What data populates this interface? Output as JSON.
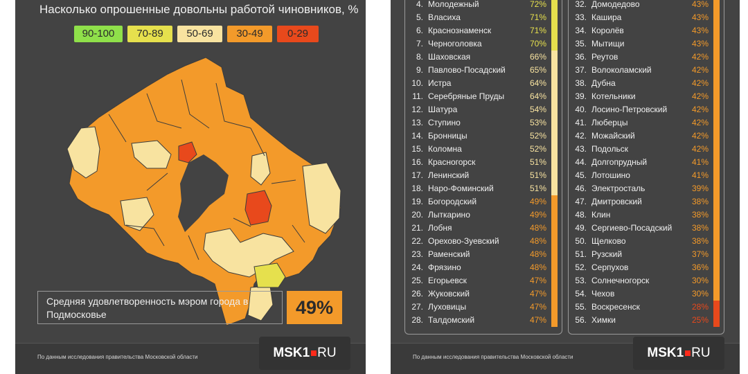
{
  "title": "Насколько опрошенные довольны работой чиновников, %",
  "legend": [
    {
      "label": "90-100",
      "color": "#8fe04a"
    },
    {
      "label": "70-89",
      "color": "#e6e04d"
    },
    {
      "label": "50-69",
      "color": "#f8e3a0"
    },
    {
      "label": "30-49",
      "color": "#f39a2a"
    },
    {
      "label": "0-29",
      "color": "#e8491c"
    }
  ],
  "average": {
    "label": "Средняя удовлетворенность мэром города в Подмосковье",
    "value": "49%"
  },
  "footer": {
    "note": "По данным исследования правительства Московской области",
    "logo_main": "MSK1",
    "logo_ru": "RU"
  },
  "chart_data": {
    "type": "table",
    "title": "Насколько опрошенные довольны работой чиновников, %",
    "columns": [
      {
        "rows": [
          {
            "rank": "4.",
            "name": "Молодежный",
            "pct": "72%",
            "value": 72
          },
          {
            "rank": "5.",
            "name": "Власиха",
            "pct": "71%",
            "value": 71
          },
          {
            "rank": "6.",
            "name": "Краснознаменск",
            "pct": "71%",
            "value": 71
          },
          {
            "rank": "7.",
            "name": "Черноголовка",
            "pct": "70%",
            "value": 70
          },
          {
            "rank": "8.",
            "name": "Шаховская",
            "pct": "66%",
            "value": 66
          },
          {
            "rank": "9.",
            "name": "Павлово-Посадский",
            "pct": "65%",
            "value": 65
          },
          {
            "rank": "10.",
            "name": "Истра",
            "pct": "64%",
            "value": 64
          },
          {
            "rank": "11.",
            "name": "Серебряные Пруды",
            "pct": "64%",
            "value": 64
          },
          {
            "rank": "12.",
            "name": "Шатура",
            "pct": "54%",
            "value": 54
          },
          {
            "rank": "13.",
            "name": "Ступино",
            "pct": "53%",
            "value": 53
          },
          {
            "rank": "14.",
            "name": "Бронницы",
            "pct": "52%",
            "value": 52
          },
          {
            "rank": "15.",
            "name": "Коломна",
            "pct": "52%",
            "value": 52
          },
          {
            "rank": "16.",
            "name": "Красногорск",
            "pct": "51%",
            "value": 51
          },
          {
            "rank": "17.",
            "name": "Ленинский",
            "pct": "51%",
            "value": 51
          },
          {
            "rank": "18.",
            "name": "Наро-Фоминский",
            "pct": "51%",
            "value": 51
          },
          {
            "rank": "19.",
            "name": "Богородский",
            "pct": "49%",
            "value": 49
          },
          {
            "rank": "20.",
            "name": "Лыткарино",
            "pct": "49%",
            "value": 49
          },
          {
            "rank": "21.",
            "name": "Лобня",
            "pct": "48%",
            "value": 48
          },
          {
            "rank": "22.",
            "name": "Орехово-Зуевский",
            "pct": "48%",
            "value": 48
          },
          {
            "rank": "23.",
            "name": "Раменский",
            "pct": "48%",
            "value": 48
          },
          {
            "rank": "24.",
            "name": "Фрязино",
            "pct": "48%",
            "value": 48
          },
          {
            "rank": "25.",
            "name": "Егорьевск",
            "pct": "47%",
            "value": 47
          },
          {
            "rank": "26.",
            "name": "Жуковский",
            "pct": "47%",
            "value": 47
          },
          {
            "rank": "27.",
            "name": "Луховицы",
            "pct": "47%",
            "value": 47
          },
          {
            "rank": "28.",
            "name": "Талдомский",
            "pct": "47%",
            "value": 47
          }
        ]
      },
      {
        "rows": [
          {
            "rank": "32.",
            "name": "Домодедово",
            "pct": "43%",
            "value": 43
          },
          {
            "rank": "33.",
            "name": "Кашира",
            "pct": "43%",
            "value": 43
          },
          {
            "rank": "34.",
            "name": "Королёв",
            "pct": "43%",
            "value": 43
          },
          {
            "rank": "35.",
            "name": "Мытищи",
            "pct": "43%",
            "value": 43
          },
          {
            "rank": "36.",
            "name": "Реутов",
            "pct": "42%",
            "value": 42
          },
          {
            "rank": "37.",
            "name": "Волоколамский",
            "pct": "42%",
            "value": 42
          },
          {
            "rank": "38.",
            "name": "Дубна",
            "pct": "42%",
            "value": 42
          },
          {
            "rank": "39.",
            "name": "Котельники",
            "pct": "42%",
            "value": 42
          },
          {
            "rank": "40.",
            "name": "Лосино-Петровский",
            "pct": "42%",
            "value": 42
          },
          {
            "rank": "41.",
            "name": "Люберцы",
            "pct": "42%",
            "value": 42
          },
          {
            "rank": "42.",
            "name": "Можайский",
            "pct": "42%",
            "value": 42
          },
          {
            "rank": "43.",
            "name": "Подольск",
            "pct": "42%",
            "value": 42
          },
          {
            "rank": "44.",
            "name": "Долгопрудный",
            "pct": "41%",
            "value": 41
          },
          {
            "rank": "45.",
            "name": "Лотошино",
            "pct": "41%",
            "value": 41
          },
          {
            "rank": "46.",
            "name": "Электросталь",
            "pct": "39%",
            "value": 39
          },
          {
            "rank": "47.",
            "name": "Дмитровский",
            "pct": "38%",
            "value": 38
          },
          {
            "rank": "48.",
            "name": "Клин",
            "pct": "38%",
            "value": 38
          },
          {
            "rank": "49.",
            "name": "Сергиево-Посадский",
            "pct": "38%",
            "value": 38
          },
          {
            "rank": "50.",
            "name": "Щелково",
            "pct": "38%",
            "value": 38
          },
          {
            "rank": "51.",
            "name": "Рузский",
            "pct": "37%",
            "value": 37
          },
          {
            "rank": "52.",
            "name": "Серпухов",
            "pct": "36%",
            "value": 36
          },
          {
            "rank": "53.",
            "name": "Солнечногорск",
            "pct": "30%",
            "value": 30
          },
          {
            "rank": "54.",
            "name": "Чехов",
            "pct": "30%",
            "value": 30
          },
          {
            "rank": "55.",
            "name": "Воскресенск",
            "pct": "28%",
            "value": 28
          },
          {
            "rank": "56.",
            "name": "Химки",
            "pct": "25%",
            "value": 25
          }
        ]
      }
    ]
  }
}
